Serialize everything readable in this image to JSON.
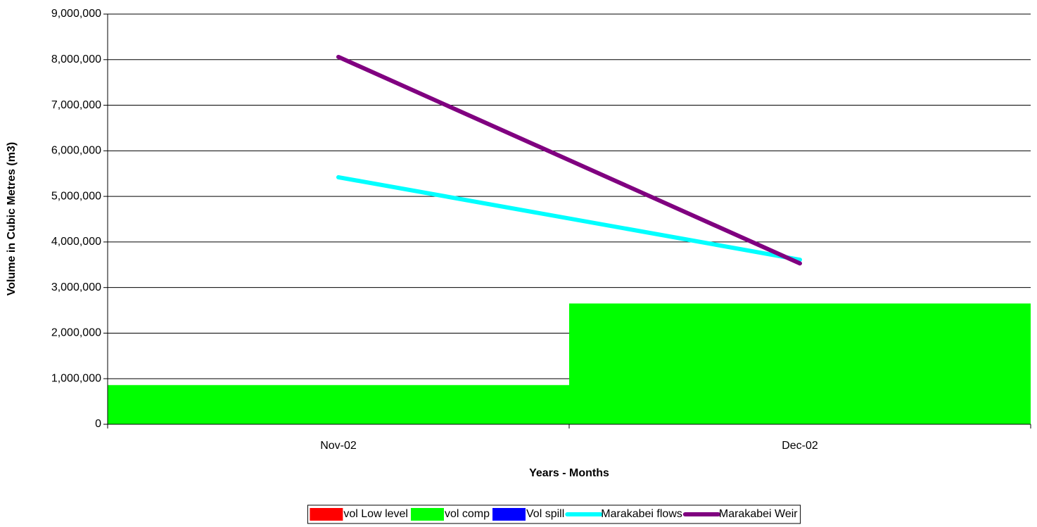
{
  "chart_data": {
    "type": "combo",
    "x_label": "Years - Months",
    "y_label": "Volume in Cubic Metres (m3)",
    "categories": [
      "Nov-02",
      "Dec-02"
    ],
    "ylim": [
      0,
      9000000
    ],
    "yticks": [
      {
        "value": 0,
        "label": "0"
      },
      {
        "value": 1000000,
        "label": "1,000,000"
      },
      {
        "value": 2000000,
        "label": "2,000,000"
      },
      {
        "value": 3000000,
        "label": "3,000,000"
      },
      {
        "value": 4000000,
        "label": "4,000,000"
      },
      {
        "value": 5000000,
        "label": "5,000,000"
      },
      {
        "value": 6000000,
        "label": "6,000,000"
      },
      {
        "value": 7000000,
        "label": "7,000,000"
      },
      {
        "value": 8000000,
        "label": "8,000,000"
      },
      {
        "value": 9000000,
        "label": "9,000,000"
      }
    ],
    "grid": true,
    "legend": "bottom",
    "series": [
      {
        "name": "vol Low level",
        "type": "bar",
        "color": "#ff0000",
        "values": [
          0,
          0
        ]
      },
      {
        "name": "vol comp",
        "type": "bar",
        "color": "#00ff00",
        "values": [
          860000,
          2650000
        ]
      },
      {
        "name": "Vol spill",
        "type": "bar",
        "color": "#0000ff",
        "values": [
          0,
          0
        ]
      },
      {
        "name": "Marakabei flows",
        "type": "line",
        "color": "#00ffff",
        "values": [
          5420000,
          3610000
        ]
      },
      {
        "name": "Marakabei Weir",
        "type": "line",
        "color": "#800080",
        "values": [
          8060000,
          3530000
        ]
      }
    ]
  }
}
